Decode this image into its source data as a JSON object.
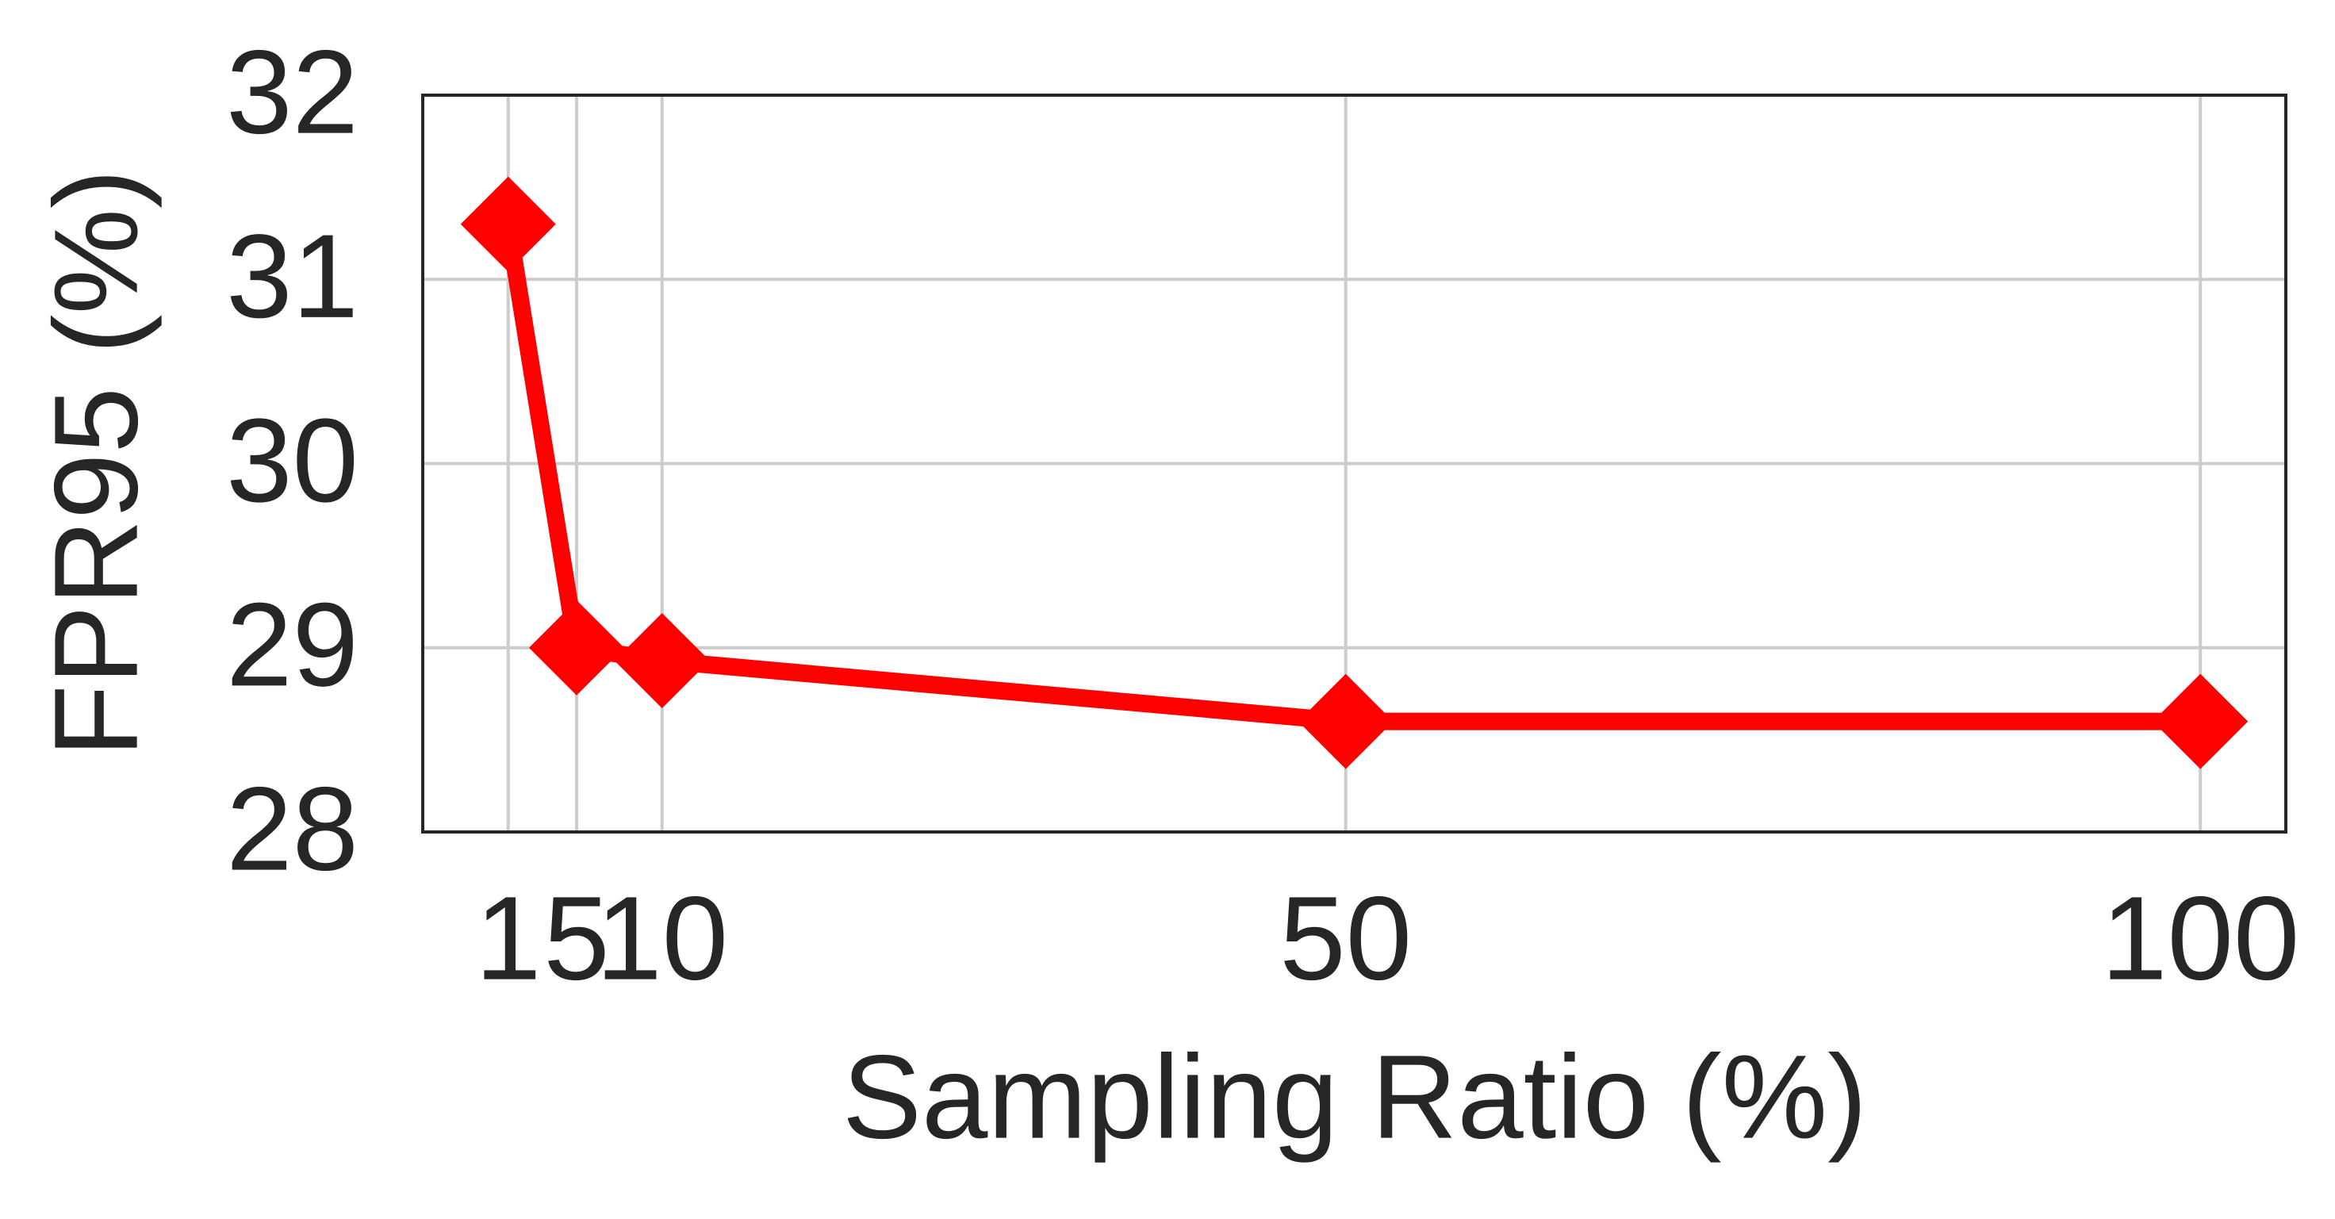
{
  "chart_data": {
    "type": "line",
    "x_label": "Sampling Ratio (%)",
    "y_label": "FPR95 (%)",
    "x": [
      1,
      5,
      10,
      50,
      100
    ],
    "series": [
      {
        "color": "#ff0000",
        "values": [
          31.3,
          29.0,
          28.93,
          28.6,
          28.6
        ]
      }
    ],
    "xlim": [
      -4,
      105
    ],
    "xticks": [
      1,
      5,
      10,
      50,
      100
    ],
    "ylim": [
      28,
      32
    ],
    "yticks": [
      28,
      29,
      30,
      31,
      32
    ],
    "grid": true
  }
}
